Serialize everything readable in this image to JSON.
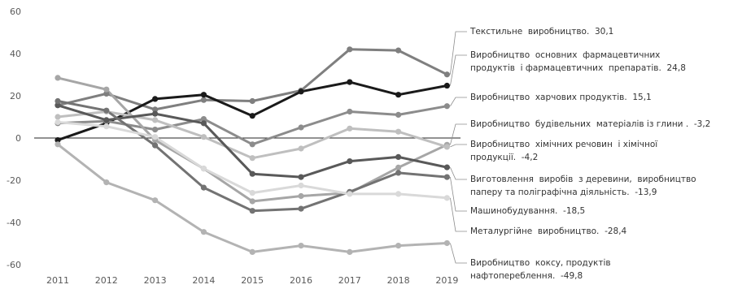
{
  "chart_data": {
    "type": "line",
    "x": [
      "2011",
      "2012",
      "2013",
      "2014",
      "2015",
      "2016",
      "2017",
      "2018",
      "2019"
    ],
    "ylim": [
      -60,
      60
    ],
    "yticks": [
      60,
      40,
      20,
      0,
      -20,
      -40,
      -60
    ],
    "grid": false,
    "series": [
      {
        "name": "Текстильне виробництво. 30,1",
        "color": "#7f7f7f",
        "values": [
          15.5,
          21,
          13.5,
          18,
          17.5,
          22.5,
          42,
          41.5,
          30.1
        ]
      },
      {
        "name": "Виробництво основних фармацевтичних продуктів і фармацевтичних препаратів. 24,8",
        "color": "#1a1a1a",
        "values": [
          -1,
          7,
          18.5,
          20.5,
          10.5,
          22,
          26.5,
          20.5,
          24.8
        ]
      },
      {
        "name": "Виробництво харчових продуктів. 15,1",
        "color": "#8c8c8c",
        "values": [
          7,
          8,
          4,
          9,
          -3,
          5,
          12.5,
          11,
          15.1
        ]
      },
      {
        "name": "Виробництво будівельних матеріалів із глини. -3,2",
        "color": "#a6a6a6",
        "values": [
          28.5,
          23,
          -1,
          -14.5,
          -30,
          -27.5,
          -26,
          -14,
          -3.2
        ]
      },
      {
        "name": "Виробництво хімічних речовин і хімічної продукції. -4,2",
        "color": "#bfbfbf",
        "values": [
          10,
          12.5,
          8.5,
          0.5,
          -9.5,
          -5,
          4.5,
          3,
          -4.2
        ]
      },
      {
        "name": "Виготовлення виробів з деревини, виробництво паперу та поліграфічна діяльність. -13,9",
        "color": "#595959",
        "values": [
          15.5,
          8.5,
          11.5,
          7,
          -17,
          -18.5,
          -11,
          -9,
          -13.9
        ]
      },
      {
        "name": "Машинобудування. -18,5",
        "color": "#737373",
        "values": [
          17.5,
          13,
          -3.5,
          -23.5,
          -34.5,
          -33.5,
          -25.5,
          -16.5,
          -18.5
        ]
      },
      {
        "name": "Металургійне виробництво. -28,4",
        "color": "#d9d9d9",
        "values": [
          7.5,
          5.5,
          0.5,
          -14.5,
          -26,
          -22.5,
          -26.5,
          -26.5,
          -28.4
        ]
      },
      {
        "name": "Виробництво коксу, продуктів нафтопереблення. -49,8",
        "color": "#b3b3b3",
        "values": [
          -3,
          -21,
          -29.5,
          -44.5,
          -54,
          -51,
          -54,
          -51,
          -49.8
        ]
      }
    ]
  },
  "labels": [
    "Текстильне  виробництво.  30,1",
    "Виробництво  основних  фармацевтичних\nпродуктів  і фармацевтичних  препаратів.  24,8",
    "Виробництво  харчових продуктів.  15,1",
    "Виробництво  будівельних  матеріалів із глини .  -3,2",
    "Виробництво  хімічних речовин  і хімічної\nпродукції.  -4,2",
    "Виготовлення  виробів  з деревини,  виробництво\nпаперу та поліграфічна діяльність.  -13,9",
    "Машинобудування.  -18,5",
    "Металургійне  виробництво.  -28,4",
    "Виробництво  коксу, продуктів\nнафтопереблення.  -49,8"
  ]
}
